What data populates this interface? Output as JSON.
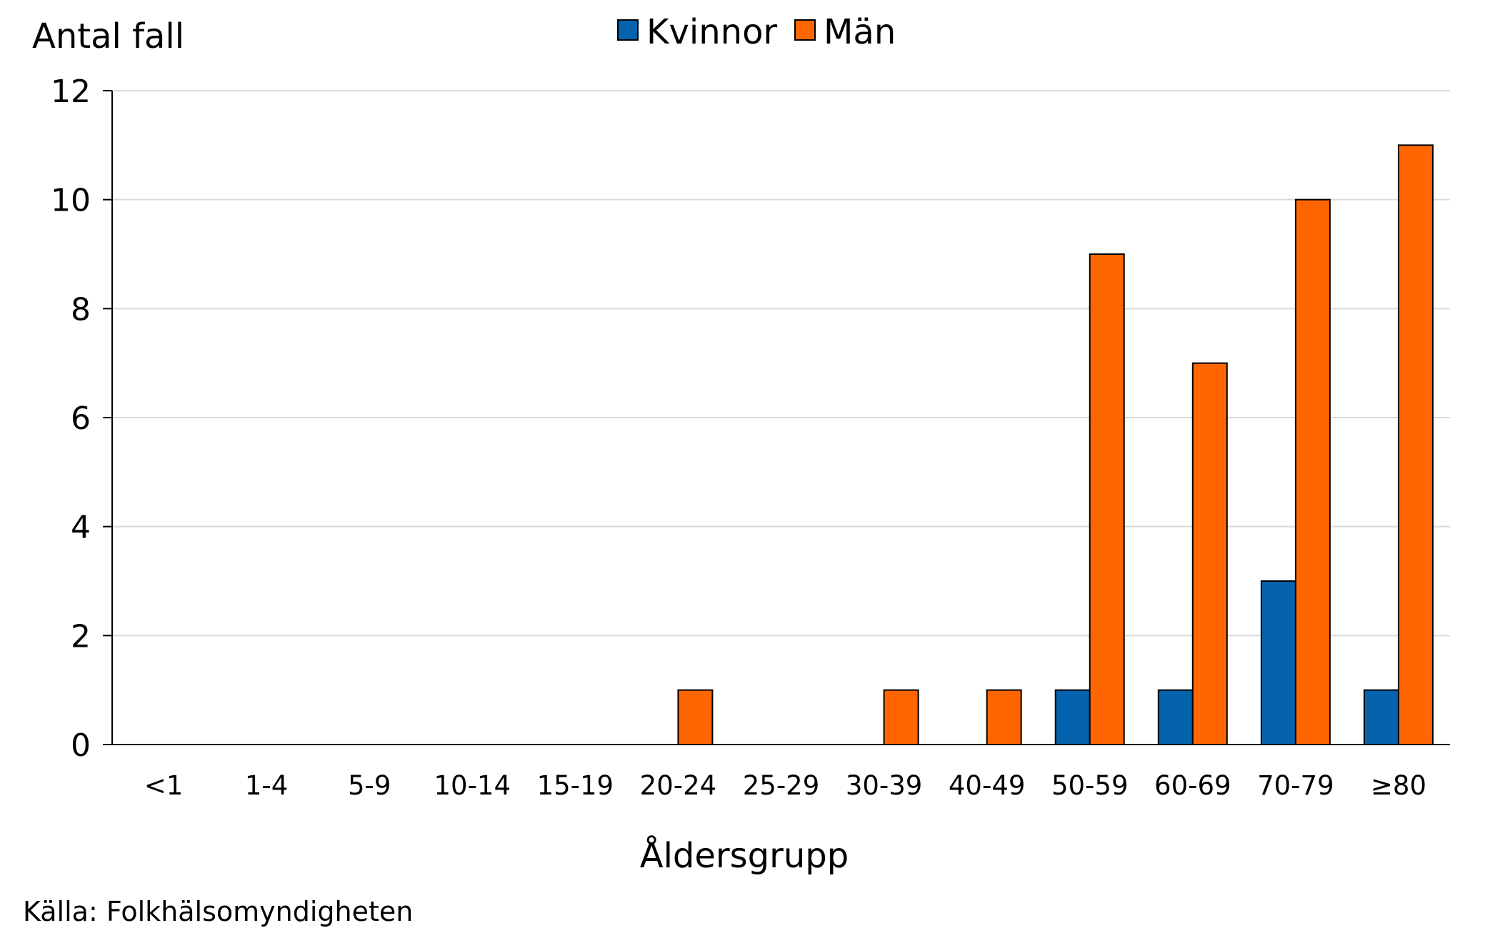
{
  "chart_data": {
    "type": "bar",
    "title": "",
    "ylabel": "Antal fall",
    "xlabel": "Åldersgrupp",
    "source": "Källa: Folkhälsomyndigheten",
    "ylim": [
      0,
      12
    ],
    "yticks": [
      0,
      2,
      4,
      6,
      8,
      10,
      12
    ],
    "grid": true,
    "legend_position": "top-center",
    "categories": [
      "<1",
      "1-4",
      "5-9",
      "10-14",
      "15-19",
      "20-24",
      "25-29",
      "30-39",
      "40-49",
      "50-59",
      "60-69",
      "70-79",
      "≥80"
    ],
    "series": [
      {
        "name": "Kvinnor",
        "color": "#0563AD",
        "values": [
          0,
          0,
          0,
          0,
          0,
          0,
          0,
          0,
          0,
          1,
          1,
          3,
          1
        ]
      },
      {
        "name": "Män",
        "color": "#FF6600",
        "values": [
          0,
          0,
          0,
          0,
          0,
          1,
          0,
          1,
          1,
          9,
          7,
          10,
          11
        ]
      }
    ]
  }
}
